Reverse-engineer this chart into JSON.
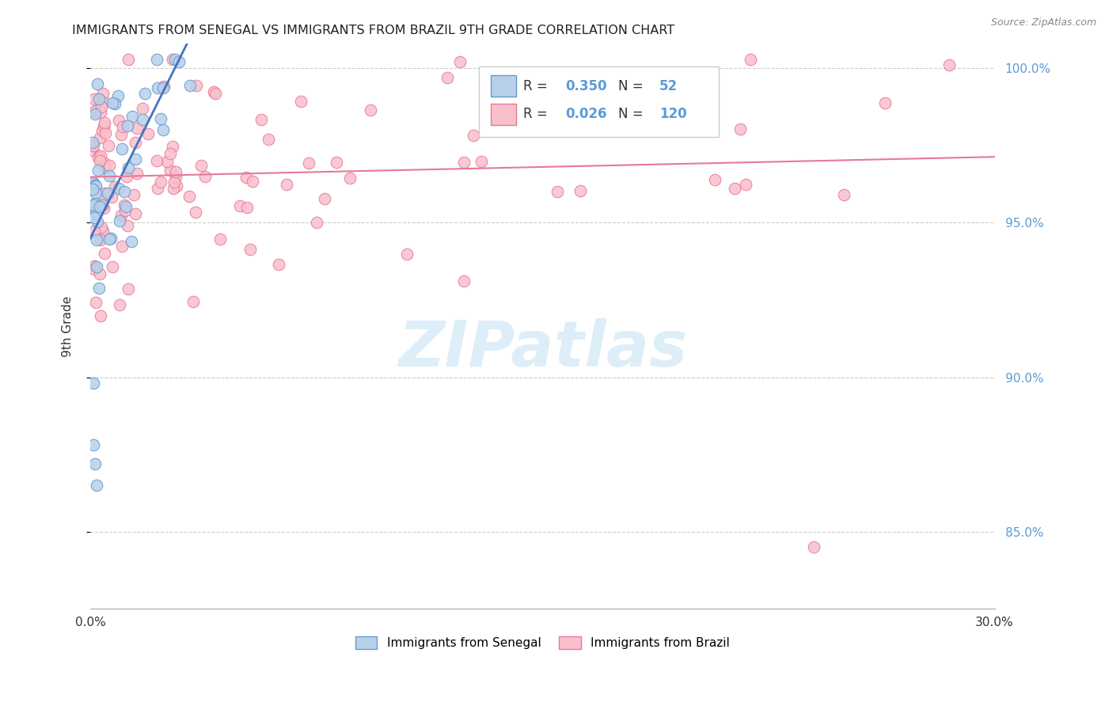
{
  "title": "IMMIGRANTS FROM SENEGAL VS IMMIGRANTS FROM BRAZIL 9TH GRADE CORRELATION CHART",
  "source": "Source: ZipAtlas.com",
  "ylabel": "9th Grade",
  "xlim": [
    0.0,
    0.3
  ],
  "ylim": [
    0.825,
    1.008
  ],
  "yticks": [
    0.85,
    0.9,
    0.95,
    1.0
  ],
  "ytick_labels": [
    "85.0%",
    "90.0%",
    "95.0%",
    "100.0%"
  ],
  "xticks": [
    0.0,
    0.05,
    0.1,
    0.15,
    0.2,
    0.25,
    0.3
  ],
  "xtick_labels": [
    "0.0%",
    "",
    "",
    "",
    "",
    "",
    "30.0%"
  ],
  "legend_R1": "0.350",
  "legend_N1": "52",
  "legend_R2": "0.026",
  "legend_N2": "120",
  "color_senegal_face": "#b8d0ea",
  "color_senegal_edge": "#6699cc",
  "color_brazil_face": "#f9c0cc",
  "color_brazil_edge": "#e87898",
  "color_line_senegal": "#4472c4",
  "color_line_brazil": "#e87898",
  "color_axis_blue": "#5b9bd5",
  "watermark_text": "ZIPatlas",
  "watermark_color": "#ddeef8"
}
